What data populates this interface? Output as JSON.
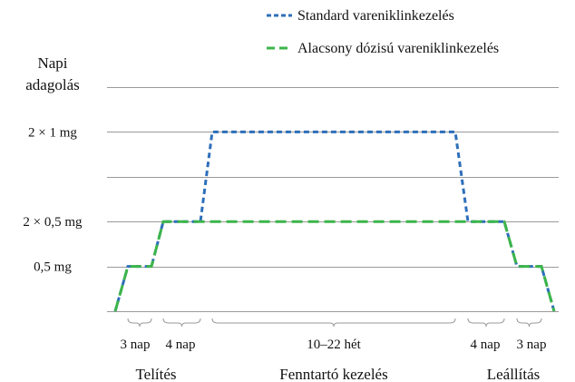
{
  "chart_data": {
    "type": "line",
    "ylabel": [
      "Napi",
      "adagolás"
    ],
    "y_ticks": [
      {
        "value": 0.5,
        "label": "0,5 mg"
      },
      {
        "value": 1,
        "label": "2 × 0,5 mg"
      },
      {
        "value": 2,
        "label": "2 × 1 mg"
      }
    ],
    "ylim": [
      0,
      2.5
    ],
    "grid_values": [
      0,
      0.5,
      1,
      1.5,
      2,
      2.5
    ],
    "x_segments": [
      {
        "label": "3 nap"
      },
      {
        "label": "4 nap"
      },
      {
        "label": "10–22 hét"
      },
      {
        "label": "4 nap"
      },
      {
        "label": "3 nap"
      }
    ],
    "phases": [
      {
        "label": "Telítés"
      },
      {
        "label": "Fenntartó kezelés"
      },
      {
        "label": "Leállítás"
      }
    ],
    "series": [
      {
        "name": "Standard vareniklinkezelés",
        "color": "#2e6fba",
        "dash": "short",
        "points": [
          {
            "x": 0,
            "y": 0
          },
          {
            "x": 1,
            "y": 0.5
          },
          {
            "x": 3,
            "y": 0.5
          },
          {
            "x": 4,
            "y": 1
          },
          {
            "x": 7,
            "y": 1
          },
          {
            "x": 8,
            "y": 2
          },
          {
            "x": 22,
            "y": 2
          },
          {
            "x": 23,
            "y": 1
          },
          {
            "x": 26,
            "y": 1
          },
          {
            "x": 27,
            "y": 0.5
          },
          {
            "x": 29,
            "y": 0.5
          },
          {
            "x": 30,
            "y": 0
          }
        ]
      },
      {
        "name": "Alacsony dózisú vareniklinkezelés",
        "color": "#3cb54a",
        "dash": "long",
        "points": [
          {
            "x": 0,
            "y": 0
          },
          {
            "x": 1,
            "y": 0.5
          },
          {
            "x": 3,
            "y": 0.5
          },
          {
            "x": 4,
            "y": 1
          },
          {
            "x": 26,
            "y": 1
          },
          {
            "x": 27,
            "y": 0.5
          },
          {
            "x": 29,
            "y": 0.5
          },
          {
            "x": 30,
            "y": 0
          }
        ]
      }
    ],
    "legend_position": "top-right"
  }
}
